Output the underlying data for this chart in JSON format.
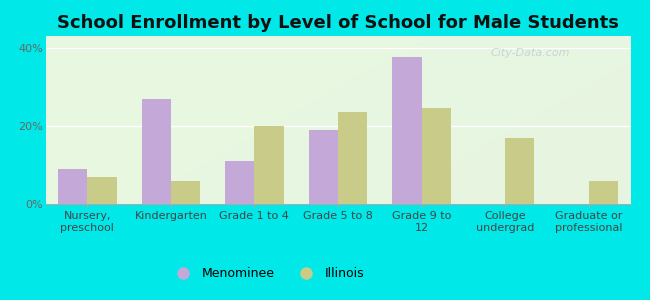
{
  "title": "School Enrollment by Level of School for Male Students",
  "categories": [
    "Nursery,\npreschool",
    "Kindergarten",
    "Grade 1 to 4",
    "Grade 5 to 8",
    "Grade 9 to\n12",
    "College\nundergrad",
    "Graduate or\nprofessional"
  ],
  "menominee": [
    9.0,
    27.0,
    11.0,
    19.0,
    37.5,
    0.0,
    0.0
  ],
  "illinois": [
    7.0,
    6.0,
    20.0,
    23.5,
    24.5,
    17.0,
    6.0
  ],
  "menominee_color": "#c4a8d8",
  "illinois_color": "#c8cc88",
  "background_color": "#00e8e8",
  "plot_bg_color": "#e8f5e0",
  "yticks": [
    0,
    20,
    40
  ],
  "ylim": [
    0,
    43
  ],
  "ylabel_format": "{}%",
  "legend_menominee": "Menominee",
  "legend_illinois": "Illinois",
  "title_fontsize": 13,
  "tick_fontsize": 8,
  "legend_fontsize": 9,
  "bar_width": 0.35,
  "watermark": "City-Data.com"
}
